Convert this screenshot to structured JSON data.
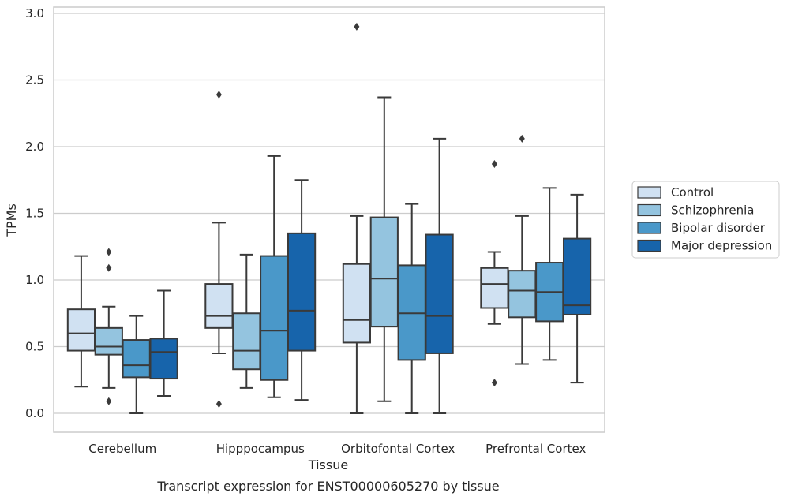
{
  "chart_data": {
    "type": "box",
    "xlabel": "Tissue",
    "ylabel": "TPMs",
    "caption": "Transcript expression for ENST00000605270 by tissue",
    "ylim": [
      -0.14,
      3.05
    ],
    "yticks": [
      "0.0",
      "0.5",
      "1.0",
      "1.5",
      "2.0",
      "2.5",
      "3.0"
    ],
    "grid": "horizontal",
    "legend_position": "right",
    "categories": [
      "Cerebellum",
      "Hipppocampus",
      "Orbitofontal Cortex",
      "Prefrontal Cortex"
    ],
    "series": [
      {
        "name": "Control",
        "color": "#d0e1f2",
        "boxes": [
          {
            "whislo": 0.2,
            "q1": 0.47,
            "med": 0.6,
            "q3": 0.78,
            "whishi": 1.18,
            "fliers": []
          },
          {
            "whislo": 0.45,
            "q1": 0.64,
            "med": 0.73,
            "q3": 0.97,
            "whishi": 1.43,
            "fliers": [
              2.39,
              0.07
            ]
          },
          {
            "whislo": 0.0,
            "q1": 0.53,
            "med": 0.7,
            "q3": 1.12,
            "whishi": 1.48,
            "fliers": [
              2.9
            ]
          },
          {
            "whislo": 0.67,
            "q1": 0.79,
            "med": 0.97,
            "q3": 1.09,
            "whishi": 1.21,
            "fliers": [
              1.87,
              0.23
            ]
          }
        ]
      },
      {
        "name": "Schizophrenia",
        "color": "#94c4df",
        "boxes": [
          {
            "whislo": 0.19,
            "q1": 0.44,
            "med": 0.5,
            "q3": 0.64,
            "whishi": 0.8,
            "fliers": [
              1.21,
              1.09,
              0.09
            ]
          },
          {
            "whislo": 0.19,
            "q1": 0.33,
            "med": 0.47,
            "q3": 0.75,
            "whishi": 1.19,
            "fliers": []
          },
          {
            "whislo": 0.09,
            "q1": 0.65,
            "med": 1.01,
            "q3": 1.47,
            "whishi": 2.37,
            "fliers": []
          },
          {
            "whislo": 0.37,
            "q1": 0.72,
            "med": 0.92,
            "q3": 1.07,
            "whishi": 1.48,
            "fliers": [
              2.06
            ]
          }
        ]
      },
      {
        "name": "Bipolar disorder",
        "color": "#4a98c9",
        "boxes": [
          {
            "whislo": 0.0,
            "q1": 0.27,
            "med": 0.36,
            "q3": 0.55,
            "whishi": 0.73,
            "fliers": []
          },
          {
            "whislo": 0.12,
            "q1": 0.25,
            "med": 0.62,
            "q3": 1.18,
            "whishi": 1.93,
            "fliers": []
          },
          {
            "whislo": 0.0,
            "q1": 0.4,
            "med": 0.75,
            "q3": 1.11,
            "whishi": 1.57,
            "fliers": []
          },
          {
            "whislo": 0.4,
            "q1": 0.69,
            "med": 0.91,
            "q3": 1.13,
            "whishi": 1.69,
            "fliers": []
          }
        ]
      },
      {
        "name": "Major depression",
        "color": "#1764ab",
        "boxes": [
          {
            "whislo": 0.13,
            "q1": 0.26,
            "med": 0.46,
            "q3": 0.56,
            "whishi": 0.92,
            "fliers": []
          },
          {
            "whislo": 0.1,
            "q1": 0.47,
            "med": 0.77,
            "q3": 1.35,
            "whishi": 1.75,
            "fliers": []
          },
          {
            "whislo": 0.0,
            "q1": 0.45,
            "med": 0.73,
            "q3": 1.34,
            "whishi": 2.06,
            "fliers": []
          },
          {
            "whislo": 0.23,
            "q1": 0.74,
            "med": 0.81,
            "q3": 1.31,
            "whishi": 1.64,
            "fliers": []
          }
        ]
      }
    ]
  }
}
